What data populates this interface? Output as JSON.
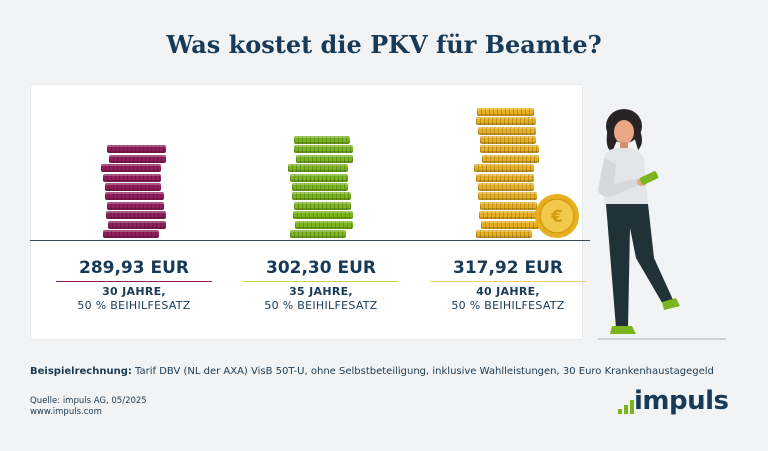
{
  "header": {
    "title": "Was kostet die PKV für Beamte?"
  },
  "items": [
    {
      "price": "289,93 EUR",
      "years": "30 JAHRE,",
      "rate": "50 % BEIHILFESATZ",
      "color": "#8c1f5a",
      "accent": "#8c1f5a",
      "coins": 10
    },
    {
      "price": "302,30 EUR",
      "years": "35 JAHRE,",
      "rate": "50 % BEIHILFESATZ",
      "color": "#7ab51d",
      "accent": "#c9d64a",
      "coins": 11
    },
    {
      "price": "317,92 EUR",
      "years": "40 JAHRE,",
      "rate": "50 % BEIHILFESATZ",
      "color": "#e8b020",
      "accent": "#f2cf6a",
      "coins": 14
    }
  ],
  "footnote": {
    "label": "Beispielrechnung:",
    "text": " Tarif DBV (NL der AXA) VisB 50T-U, ohne Selbstbeteiligung, inklusive Wahlleistungen, 30 Euro Krankenhaustagegeld"
  },
  "source": "Quelle: impuls AG, 05/2025",
  "website": "www.impuls.com",
  "logo": {
    "text": "impuls",
    "color": "#163a57",
    "accent": "#7ab51d"
  },
  "icons": {
    "coin_symbol": "€"
  }
}
